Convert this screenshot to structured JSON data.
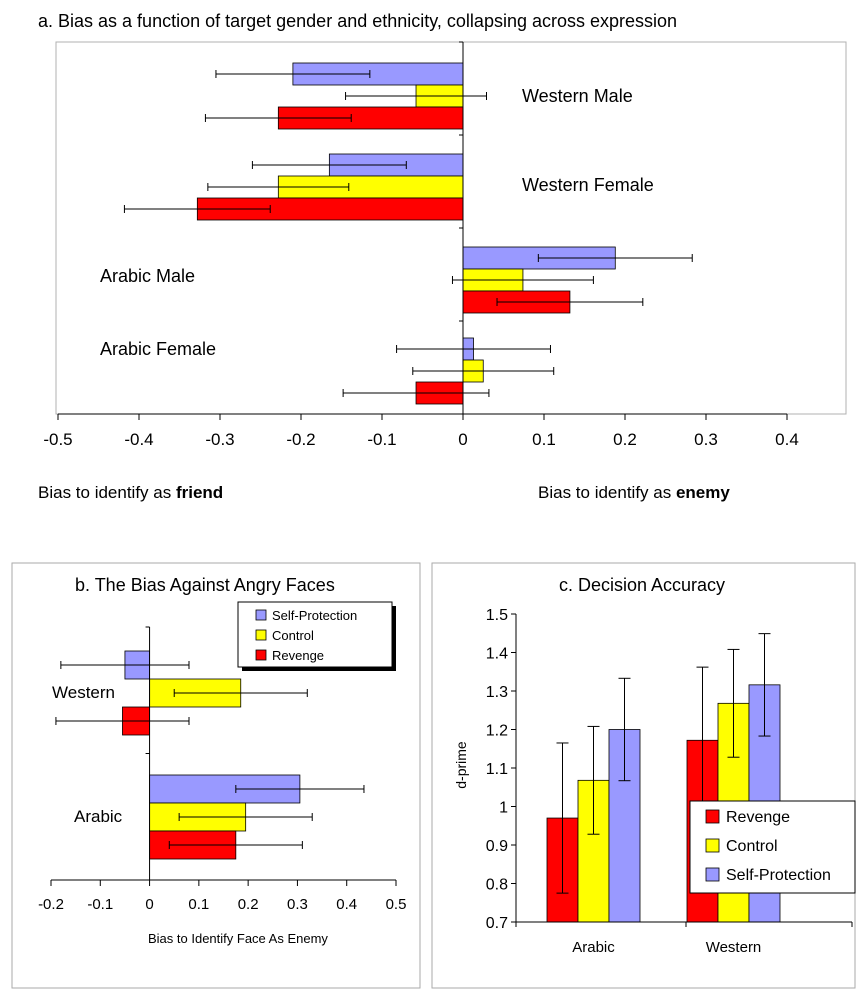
{
  "colors": {
    "self_protection": "#9999ff",
    "control": "#ffff00",
    "revenge": "#ff0000"
  },
  "chart_data": [
    {
      "id": "a",
      "type": "bar",
      "orientation": "horizontal",
      "title": "a. Bias as a function of target gender and ethnicity, collapsing across expression",
      "categories": [
        "Western Male",
        "Western Female",
        "Arabic Male",
        "Arabic Female"
      ],
      "series": [
        {
          "key": "self_protection",
          "values": [
            -0.21,
            -0.165,
            0.188,
            0.013
          ],
          "errors": [
            0.095,
            0.095,
            0.095,
            0.095
          ]
        },
        {
          "key": "control",
          "values": [
            -0.058,
            -0.228,
            0.074,
            0.025
          ],
          "errors": [
            0.087,
            0.087,
            0.087,
            0.087
          ]
        },
        {
          "key": "revenge",
          "values": [
            -0.228,
            -0.328,
            0.132,
            -0.058
          ],
          "errors": [
            0.09,
            0.09,
            0.09,
            0.09
          ]
        }
      ],
      "xlim": [
        -0.5,
        0.4
      ],
      "xticks": [
        "-0.5",
        "-0.4",
        "-0.3",
        "-0.2",
        "-0.1",
        "0",
        "0.1",
        "0.2",
        "0.3",
        "0.4"
      ],
      "xlabel_left": {
        "prefix": "Bias to identify as ",
        "bold": "friend"
      },
      "xlabel_right": {
        "prefix": "Bias to identify as ",
        "bold": "enemy"
      },
      "grid": false
    },
    {
      "id": "b",
      "type": "bar",
      "orientation": "horizontal",
      "title": "b. The Bias Against Angry Faces",
      "categories": [
        "Western",
        "Arabic"
      ],
      "series": [
        {
          "name": "Self-Protection",
          "key": "self_protection",
          "values": [
            -0.05,
            0.305
          ],
          "errors": [
            0.13,
            0.13
          ]
        },
        {
          "name": "Control",
          "key": "control",
          "values": [
            0.185,
            0.195
          ],
          "errors": [
            0.135,
            0.135
          ]
        },
        {
          "name": "Revenge",
          "key": "revenge",
          "values": [
            -0.055,
            0.175
          ],
          "errors": [
            0.135,
            0.135
          ]
        }
      ],
      "xlim": [
        -0.2,
        0.5
      ],
      "xticks": [
        "-0.2",
        "-0.1",
        "0",
        "0.1",
        "0.2",
        "0.3",
        "0.4",
        "0.5"
      ],
      "xlabel": "Bias to Identify Face As Enemy",
      "legend": "top-right",
      "grid": false
    },
    {
      "id": "c",
      "type": "bar",
      "orientation": "vertical",
      "title": "c. Decision Accuracy",
      "categories": [
        "Arabic",
        "Western"
      ],
      "series": [
        {
          "name": "Revenge",
          "key": "revenge",
          "values": [
            0.97,
            1.172
          ],
          "errors": [
            0.195,
            0.19
          ]
        },
        {
          "name": "Control",
          "key": "control",
          "values": [
            1.068,
            1.268
          ],
          "errors": [
            0.14,
            0.14
          ]
        },
        {
          "name": "Self-Protection",
          "key": "self_protection",
          "values": [
            1.2,
            1.316
          ],
          "errors": [
            0.133,
            0.133
          ]
        }
      ],
      "ylim": [
        0.7,
        1.5
      ],
      "yticks": [
        "0.7",
        "0.8",
        "0.9",
        "1",
        "1.1",
        "1.2",
        "1.3",
        "1.4",
        "1.5"
      ],
      "ylabel": "d-prime",
      "legend": "bottom-right",
      "grid": false
    }
  ]
}
